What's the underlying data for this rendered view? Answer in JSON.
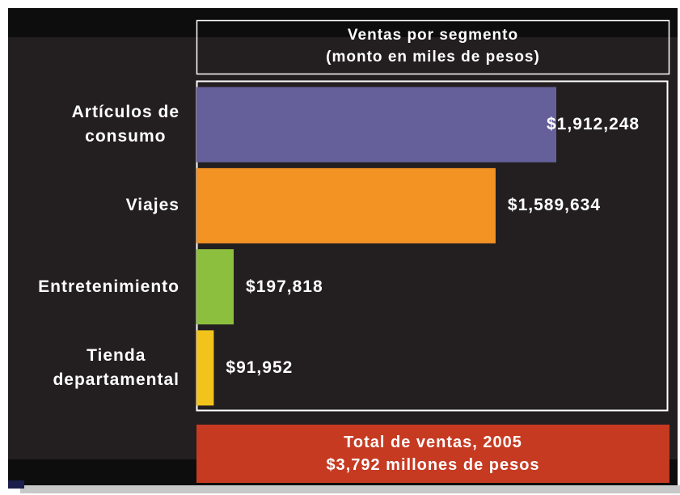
{
  "chart_data": {
    "type": "bar",
    "orientation": "horizontal",
    "title": "Ventas por segmento",
    "subtitle": "(monto en miles de pesos)",
    "categories": [
      "Artículos de\nconsumo",
      "Viajes",
      "Entretenimiento",
      "Tienda\ndepartamental"
    ],
    "values": [
      1912248,
      1589634,
      197818,
      91952
    ],
    "value_labels": [
      "$1,912,248",
      "$1,589,634",
      "$197,818",
      "$91,952"
    ],
    "colors": [
      "#65609a",
      "#f39324",
      "#8dbf3e",
      "#f2c31d"
    ],
    "annotations": [
      "Total de ventas, 2005",
      "$3,792 millones de pesos"
    ]
  }
}
